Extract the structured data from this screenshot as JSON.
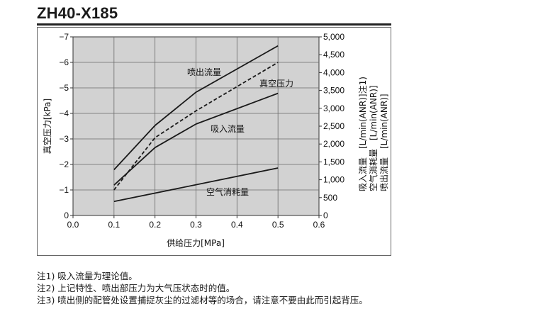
{
  "title": "ZH40-X185",
  "chart_data": {
    "type": "line",
    "xlabel": "供给压力[MPa]",
    "ylabel_left": "真空压力[kPa]",
    "ylabel_right": [
      "吸入流量　[L/min(ANR)]注1)",
      "空气消耗量　[L/min(ANR)]",
      "喷出流量　[L/min(ANR)]"
    ],
    "xlim": [
      0,
      0.6
    ],
    "ylim_left": [
      0,
      -7
    ],
    "ylim_right": [
      0,
      5000
    ],
    "x_ticks": [
      "0.0",
      "0.1",
      "0.2",
      "0.3",
      "0.4",
      "0.5",
      "0.6"
    ],
    "y_left_ticks": [
      "−7",
      "−6",
      "−5",
      "−4",
      "−3",
      "−2",
      "−1",
      "0"
    ],
    "y_right_ticks": [
      "5,000",
      "4,500",
      "4,000",
      "3,500",
      "3,000",
      "2,500",
      "2,000",
      "1,500",
      "1,000",
      "500",
      "0"
    ],
    "grid": true,
    "series": [
      {
        "name": "喷出流量",
        "axis": "right",
        "style": "solid",
        "x": [
          0.1,
          0.2,
          0.3,
          0.5
        ],
        "y": [
          1280,
          2520,
          3450,
          4750
        ]
      },
      {
        "name": "真空压力",
        "axis": "left",
        "style": "dashed",
        "x": [
          0.1,
          0.2,
          0.3,
          0.5
        ],
        "y": [
          -1.0,
          -3.05,
          -4.1,
          -6.0
        ]
      },
      {
        "name": "吸入流量",
        "axis": "right",
        "style": "solid",
        "x": [
          0.1,
          0.2,
          0.3,
          0.5
        ],
        "y": [
          850,
          1900,
          2560,
          3420
        ]
      },
      {
        "name": "空气消耗量",
        "axis": "right",
        "style": "solid",
        "x": [
          0.1,
          0.5
        ],
        "y": [
          390,
          1330
        ]
      }
    ]
  },
  "notes": [
    "注1) 吸入流量为理论值。",
    "注2) 上记特性、喷出部压力为大气压状态时的值。",
    "注3) 喷出侧的配管处设置捕捉灰尘的过滤材等的场合，请注意不要由此而引起背压。"
  ]
}
